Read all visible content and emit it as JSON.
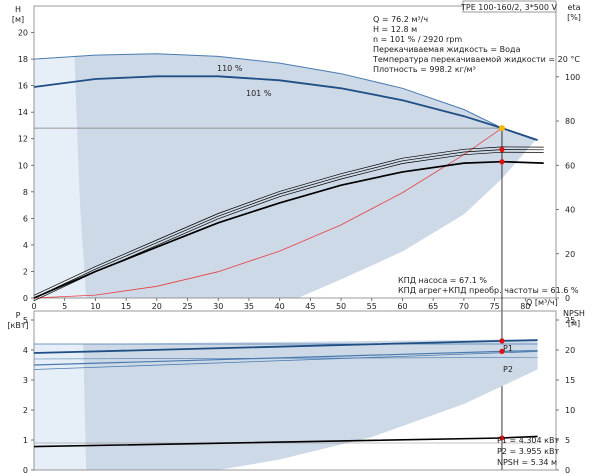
{
  "title": "TPE 100-160/2, 3*500 V",
  "info_lines": [
    "Q = 76.2 м³/ч",
    "H = 12.8 м",
    "n = 101 % / 2920 rpm",
    "Перекачиваемая жидкость = Вода",
    "Температура перекачиваемой жидкости = 20 °C",
    "Плотность = 998.2 кг/м³"
  ],
  "efficiency_lines": [
    "КПД насоса = 67.1 %",
    "КПД агрег+КПД преобр. частоты = 61.6 %"
  ],
  "power_lines": [
    "P1 = 4.304 кВт",
    "P2 = 3.955 кВт",
    "NPSH = 5.34 м"
  ],
  "colors": {
    "envelope": "#cdd9e6",
    "envelope_light": "#e6eef7",
    "curve_main": "#1f4e85",
    "curve_secondary": "#4a7bb0",
    "system_curve": "#e84040",
    "operating_point": "#f5b800",
    "marker_red": "#e01010",
    "black": "#000000",
    "grid": "#808080"
  },
  "chart_data": [
    {
      "type": "line",
      "panel": "head_efficiency",
      "xlabel": "Q [м³/ч]",
      "ylabel_left": "H [м]",
      "ylabel_right": "eta [%]",
      "xlim": [
        0,
        85
      ],
      "xticks": [
        0,
        5,
        10,
        15,
        20,
        25,
        30,
        35,
        40,
        45,
        50,
        55,
        60,
        65,
        70,
        75,
        80
      ],
      "ylim_left": [
        0,
        22
      ],
      "yticks_left": [
        0,
        2,
        4,
        6,
        8,
        10,
        12,
        14,
        16,
        18,
        20
      ],
      "ylim_right": [
        0,
        132
      ],
      "yticks_right": [
        0,
        20,
        40,
        60,
        80,
        100
      ],
      "curve_labels": [
        "110 %",
        "101 %"
      ],
      "series": [
        {
          "name": "110 %",
          "axis": "left",
          "x": [
            0,
            10,
            20,
            30,
            40,
            50,
            60,
            70,
            76.2,
            81.7
          ],
          "y": [
            18.0,
            18.3,
            18.4,
            18.2,
            17.7,
            16.9,
            15.8,
            14.2,
            12.8,
            11.9
          ]
        },
        {
          "name": "101 %",
          "axis": "left",
          "x": [
            0,
            5,
            10,
            20,
            30,
            40,
            50,
            60,
            70,
            76.2,
            82
          ],
          "y": [
            15.9,
            16.2,
            16.5,
            16.7,
            16.7,
            16.4,
            15.8,
            14.9,
            13.7,
            12.8,
            11.9
          ]
        },
        {
          "axis": "left",
          "x": [
            0,
            10,
            20,
            30,
            40,
            50,
            60,
            70,
            76.2
          ],
          "y": [
            0,
            0.22,
            0.88,
            1.98,
            3.53,
            5.51,
            7.94,
            10.8,
            12.8
          ]
        },
        {
          "axis": "right",
          "x": [
            0,
            10,
            20,
            30,
            40,
            50,
            60,
            70,
            76.2,
            83
          ],
          "y": [
            0,
            13,
            25,
            37,
            47,
            55,
            62,
            66,
            67.1,
            67
          ]
        },
        {
          "axis": "right",
          "x": [
            0,
            10,
            20,
            30,
            40,
            50,
            60,
            70,
            76.2,
            83
          ],
          "y": [
            0,
            12,
            23,
            34,
            43,
            51,
            57,
            61,
            61.6,
            61
          ]
        }
      ],
      "operating_point": {
        "x": 76.2,
        "y": 12.8
      }
    },
    {
      "type": "line",
      "panel": "power_npsh",
      "ylabel_left": "P [кВт]",
      "ylabel_right": "NPSH [м]",
      "ylim_left": [
        0,
        5.3
      ],
      "yticks_left": [
        0,
        1,
        2,
        3,
        4,
        5
      ],
      "ylim_right": [
        0,
        26.5
      ],
      "yticks_right": [
        0,
        5,
        10,
        15,
        20,
        25
      ],
      "series": [
        {
          "name": "P1",
          "axis": "left",
          "x": [
            0,
            76.2,
            82
          ],
          "y": [
            3.9,
            4.304,
            4.33
          ]
        },
        {
          "name": "P2",
          "axis": "left",
          "x": [
            0,
            76.2,
            82
          ],
          "y": [
            3.5,
            3.955,
            3.98
          ]
        },
        {
          "axis": "right",
          "x": [
            0,
            76.2,
            82
          ],
          "y": [
            3.9,
            5.34,
            5.6
          ]
        }
      ]
    }
  ]
}
